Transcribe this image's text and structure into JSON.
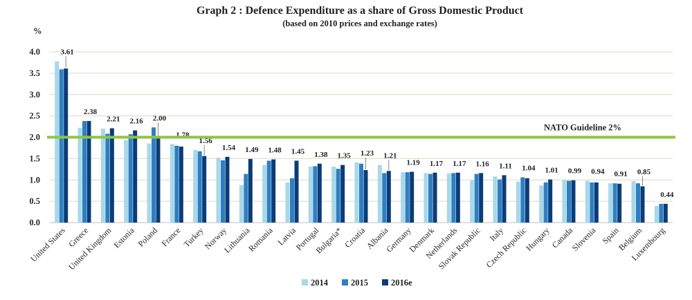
{
  "chart_data": {
    "type": "bar",
    "title": "Graph 2 : Defence Expenditure as a share of Gross Domestic Product",
    "subtitle": "(based on 2010 prices and exchange rates)",
    "ylabel": "%",
    "xlabel": "",
    "ylim": [
      0,
      4.0
    ],
    "yticks": [
      "0.0",
      "0.5",
      "1.0",
      "1.5",
      "2.0",
      "2.5",
      "3.0",
      "3.5",
      "4.0"
    ],
    "grid": true,
    "legend_position": "bottom-center",
    "reference_line": {
      "value": 2.0,
      "label": "NATO Guideline 2%",
      "color": "#8dc63f"
    },
    "categories": [
      "United States",
      "Greece",
      "United Kingdom",
      "Estonia",
      "Poland",
      "France",
      "Turkey",
      "Norway",
      "Lithuania",
      "Romania",
      "Latvia",
      "Portugal",
      "Bulgaria*",
      "Croatia",
      "Albania",
      "Germany",
      "Denmark",
      "Netherlands",
      "Slovak Republic",
      "Italy",
      "Czech Republic",
      "Hungary",
      "Canada",
      "Slovenia",
      "Spain",
      "Belgium",
      "Luxembourg"
    ],
    "series": [
      {
        "name": "2014",
        "color": "#a8d8ea",
        "values": [
          3.78,
          2.22,
          2.2,
          1.93,
          1.85,
          1.84,
          1.7,
          1.52,
          0.88,
          1.35,
          0.94,
          1.31,
          1.31,
          1.41,
          1.35,
          1.18,
          1.16,
          1.15,
          0.99,
          1.08,
          0.96,
          0.87,
          1.0,
          0.98,
          0.92,
          0.97,
          0.39
        ]
      },
      {
        "name": "2015",
        "color": "#2e7fc1",
        "values": [
          3.59,
          2.38,
          2.08,
          2.07,
          2.23,
          1.8,
          1.67,
          1.46,
          1.14,
          1.45,
          1.04,
          1.32,
          1.26,
          1.38,
          1.16,
          1.18,
          1.14,
          1.16,
          1.14,
          1.01,
          1.06,
          0.94,
          0.98,
          0.94,
          0.92,
          0.92,
          0.44
        ]
      },
      {
        "name": "2016e",
        "color": "#0b3c78",
        "values": [
          3.61,
          2.38,
          2.21,
          2.16,
          2.0,
          1.78,
          1.56,
          1.54,
          1.49,
          1.48,
          1.45,
          1.38,
          1.35,
          1.23,
          1.21,
          1.19,
          1.17,
          1.17,
          1.16,
          1.11,
          1.04,
          1.01,
          0.99,
          0.94,
          0.91,
          0.85,
          0.44
        ]
      }
    ],
    "data_labels": [
      "3.61",
      "2.38",
      "2.21",
      "2.16",
      "2.00",
      "1.78",
      "1.56",
      "1.54",
      "1.49",
      "1.48",
      "1.45",
      "1.38",
      "1.35",
      "1.23",
      "1.21",
      "1.19",
      "1.17",
      "1.17",
      "1.16",
      "1.11",
      "1.04",
      "1.01",
      "0.99",
      "0.94",
      "0.91",
      "0.85",
      "0.44"
    ]
  }
}
